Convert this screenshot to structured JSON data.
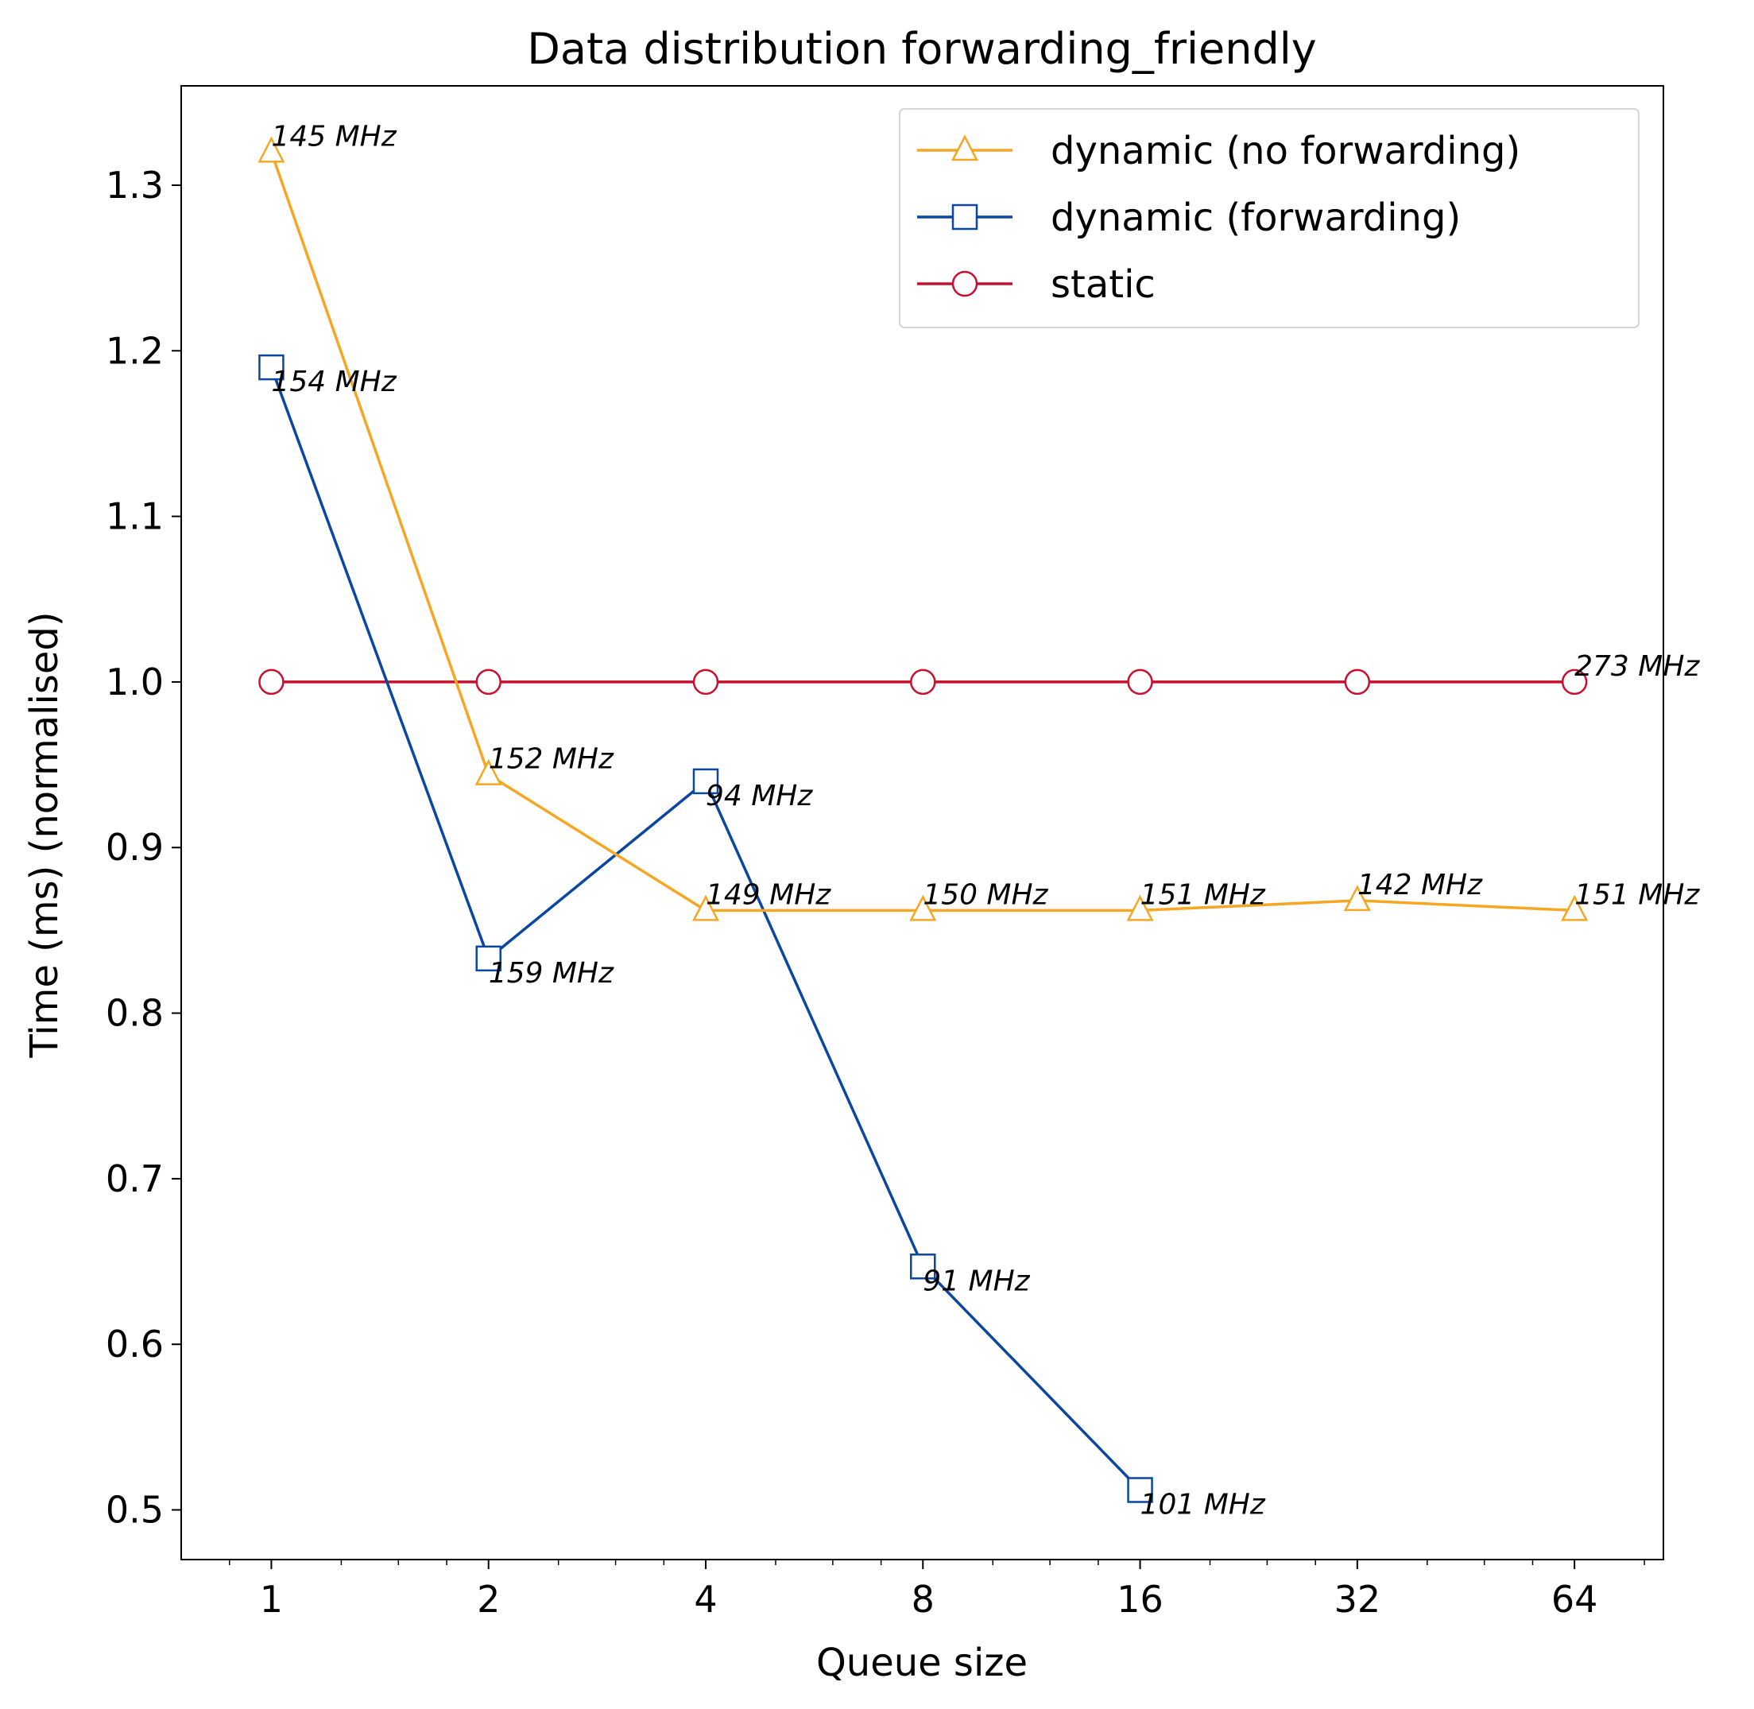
{
  "chart_data": {
    "type": "line",
    "title": "Data distribution forwarding_friendly",
    "xlabel": "Queue size",
    "ylabel": "Time (ms) (normalised)",
    "x_scale": "log2",
    "x_ticks": [
      1,
      2,
      4,
      8,
      16,
      32,
      64
    ],
    "x_tick_labels": [
      "1",
      "2",
      "4",
      "8",
      "16",
      "32",
      "64"
    ],
    "xlim": [
      0.75,
      85
    ],
    "y_ticks": [
      0.5,
      0.6,
      0.7,
      0.8,
      0.9,
      1.0,
      1.1,
      1.2,
      1.3
    ],
    "y_tick_labels": [
      "0.5",
      "0.6",
      "0.7",
      "0.8",
      "0.9",
      "1.0",
      "1.1",
      "1.2",
      "1.3"
    ],
    "ylim": [
      0.47,
      1.36
    ],
    "grid": false,
    "legend_position": "top-right",
    "series": [
      {
        "name": "dynamic (no forwarding)",
        "color": "#f5a623",
        "marker": "triangle",
        "x": [
          1,
          2,
          4,
          8,
          16,
          32,
          64
        ],
        "y": [
          1.32,
          0.944,
          0.862,
          0.862,
          0.862,
          0.868,
          0.862
        ],
        "annotations": [
          "145 MHz",
          "152 MHz",
          "149 MHz",
          "150 MHz",
          "151 MHz",
          "142 MHz",
          "151 MHz"
        ]
      },
      {
        "name": "dynamic (forwarding)",
        "color": "#0b47a1",
        "marker": "square",
        "x": [
          1,
          2,
          4,
          8,
          16
        ],
        "y": [
          1.19,
          0.833,
          0.94,
          0.647,
          0.512
        ],
        "annotations": [
          "154 MHz",
          "159 MHz",
          "94 MHz",
          "91 MHz",
          "101 MHz"
        ]
      },
      {
        "name": "static",
        "color": "#c8102e",
        "marker": "circle",
        "x": [
          1,
          2,
          4,
          8,
          16,
          32,
          64
        ],
        "y": [
          1.0,
          1.0,
          1.0,
          1.0,
          1.0,
          1.0,
          1.0
        ],
        "annotations": [
          "",
          "",
          "",
          "",
          "",
          "",
          "273 MHz"
        ]
      }
    ]
  }
}
